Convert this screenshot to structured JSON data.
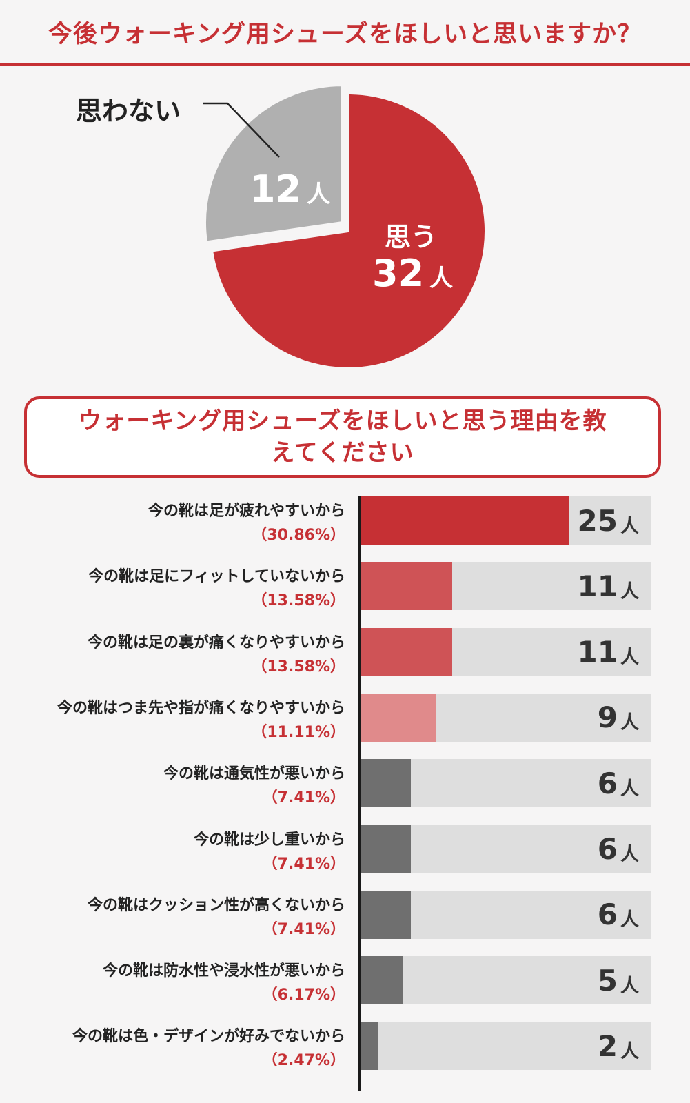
{
  "title": "今後ウォーキング用シューズをほしいと思いますか？",
  "colors": {
    "accent": "#c63034",
    "yes": "#c63034",
    "no": "#b0b0b0",
    "bar_red_strong": "#c63034",
    "bar_red_medium": "#cf5356",
    "bar_red_light": "#e08a8b",
    "bar_gray": "#6f6f6f",
    "track": "#dedede"
  },
  "pie": {
    "no_label": "思わない",
    "no_count": "12",
    "yes_label": "思う",
    "yes_count": "32",
    "unit": "人"
  },
  "question_box": {
    "text": "ウォーキング用シューズをほしいと思う理由を教えてください"
  },
  "chart_data": [
    {
      "type": "pie",
      "title": "今後ウォーキング用シューズをほしいと思いますか？",
      "labels": [
        "思う",
        "思わない"
      ],
      "values": [
        32,
        12
      ],
      "unit": "人"
    },
    {
      "type": "bar",
      "orientation": "horizontal",
      "title": "ウォーキング用シューズをほしいと思う理由を教えてください",
      "unit": "人",
      "xlim": [
        0,
        35
      ],
      "items": [
        {
          "label": "今の靴は足が疲れやすいから",
          "value": 25,
          "percent": "（30.86%）",
          "color": "#c63034"
        },
        {
          "label": "今の靴は足にフィットしていないから",
          "value": 11,
          "percent": "（13.58%）",
          "color": "#cf5356"
        },
        {
          "label": "今の靴は足の裏が痛くなりやすいから",
          "value": 11,
          "percent": "（13.58%）",
          "color": "#cf5356"
        },
        {
          "label": "今の靴はつま先や指が痛くなりやすいから",
          "value": 9,
          "percent": "（11.11%）",
          "color": "#e08a8b"
        },
        {
          "label": "今の靴は通気性が悪いから",
          "value": 6,
          "percent": "（7.41%）",
          "color": "#6f6f6f"
        },
        {
          "label": "今の靴は少し重いから",
          "value": 6,
          "percent": "（7.41%）",
          "color": "#6f6f6f"
        },
        {
          "label": "今の靴はクッション性が高くないから",
          "value": 6,
          "percent": "（7.41%）",
          "color": "#6f6f6f"
        },
        {
          "label": "今の靴は防水性や浸水性が悪いから",
          "value": 5,
          "percent": "（6.17%）",
          "color": "#6f6f6f"
        },
        {
          "label": "今の靴は色・デザインが好みでないから",
          "value": 2,
          "percent": "（2.47%）",
          "color": "#6f6f6f"
        }
      ]
    }
  ]
}
